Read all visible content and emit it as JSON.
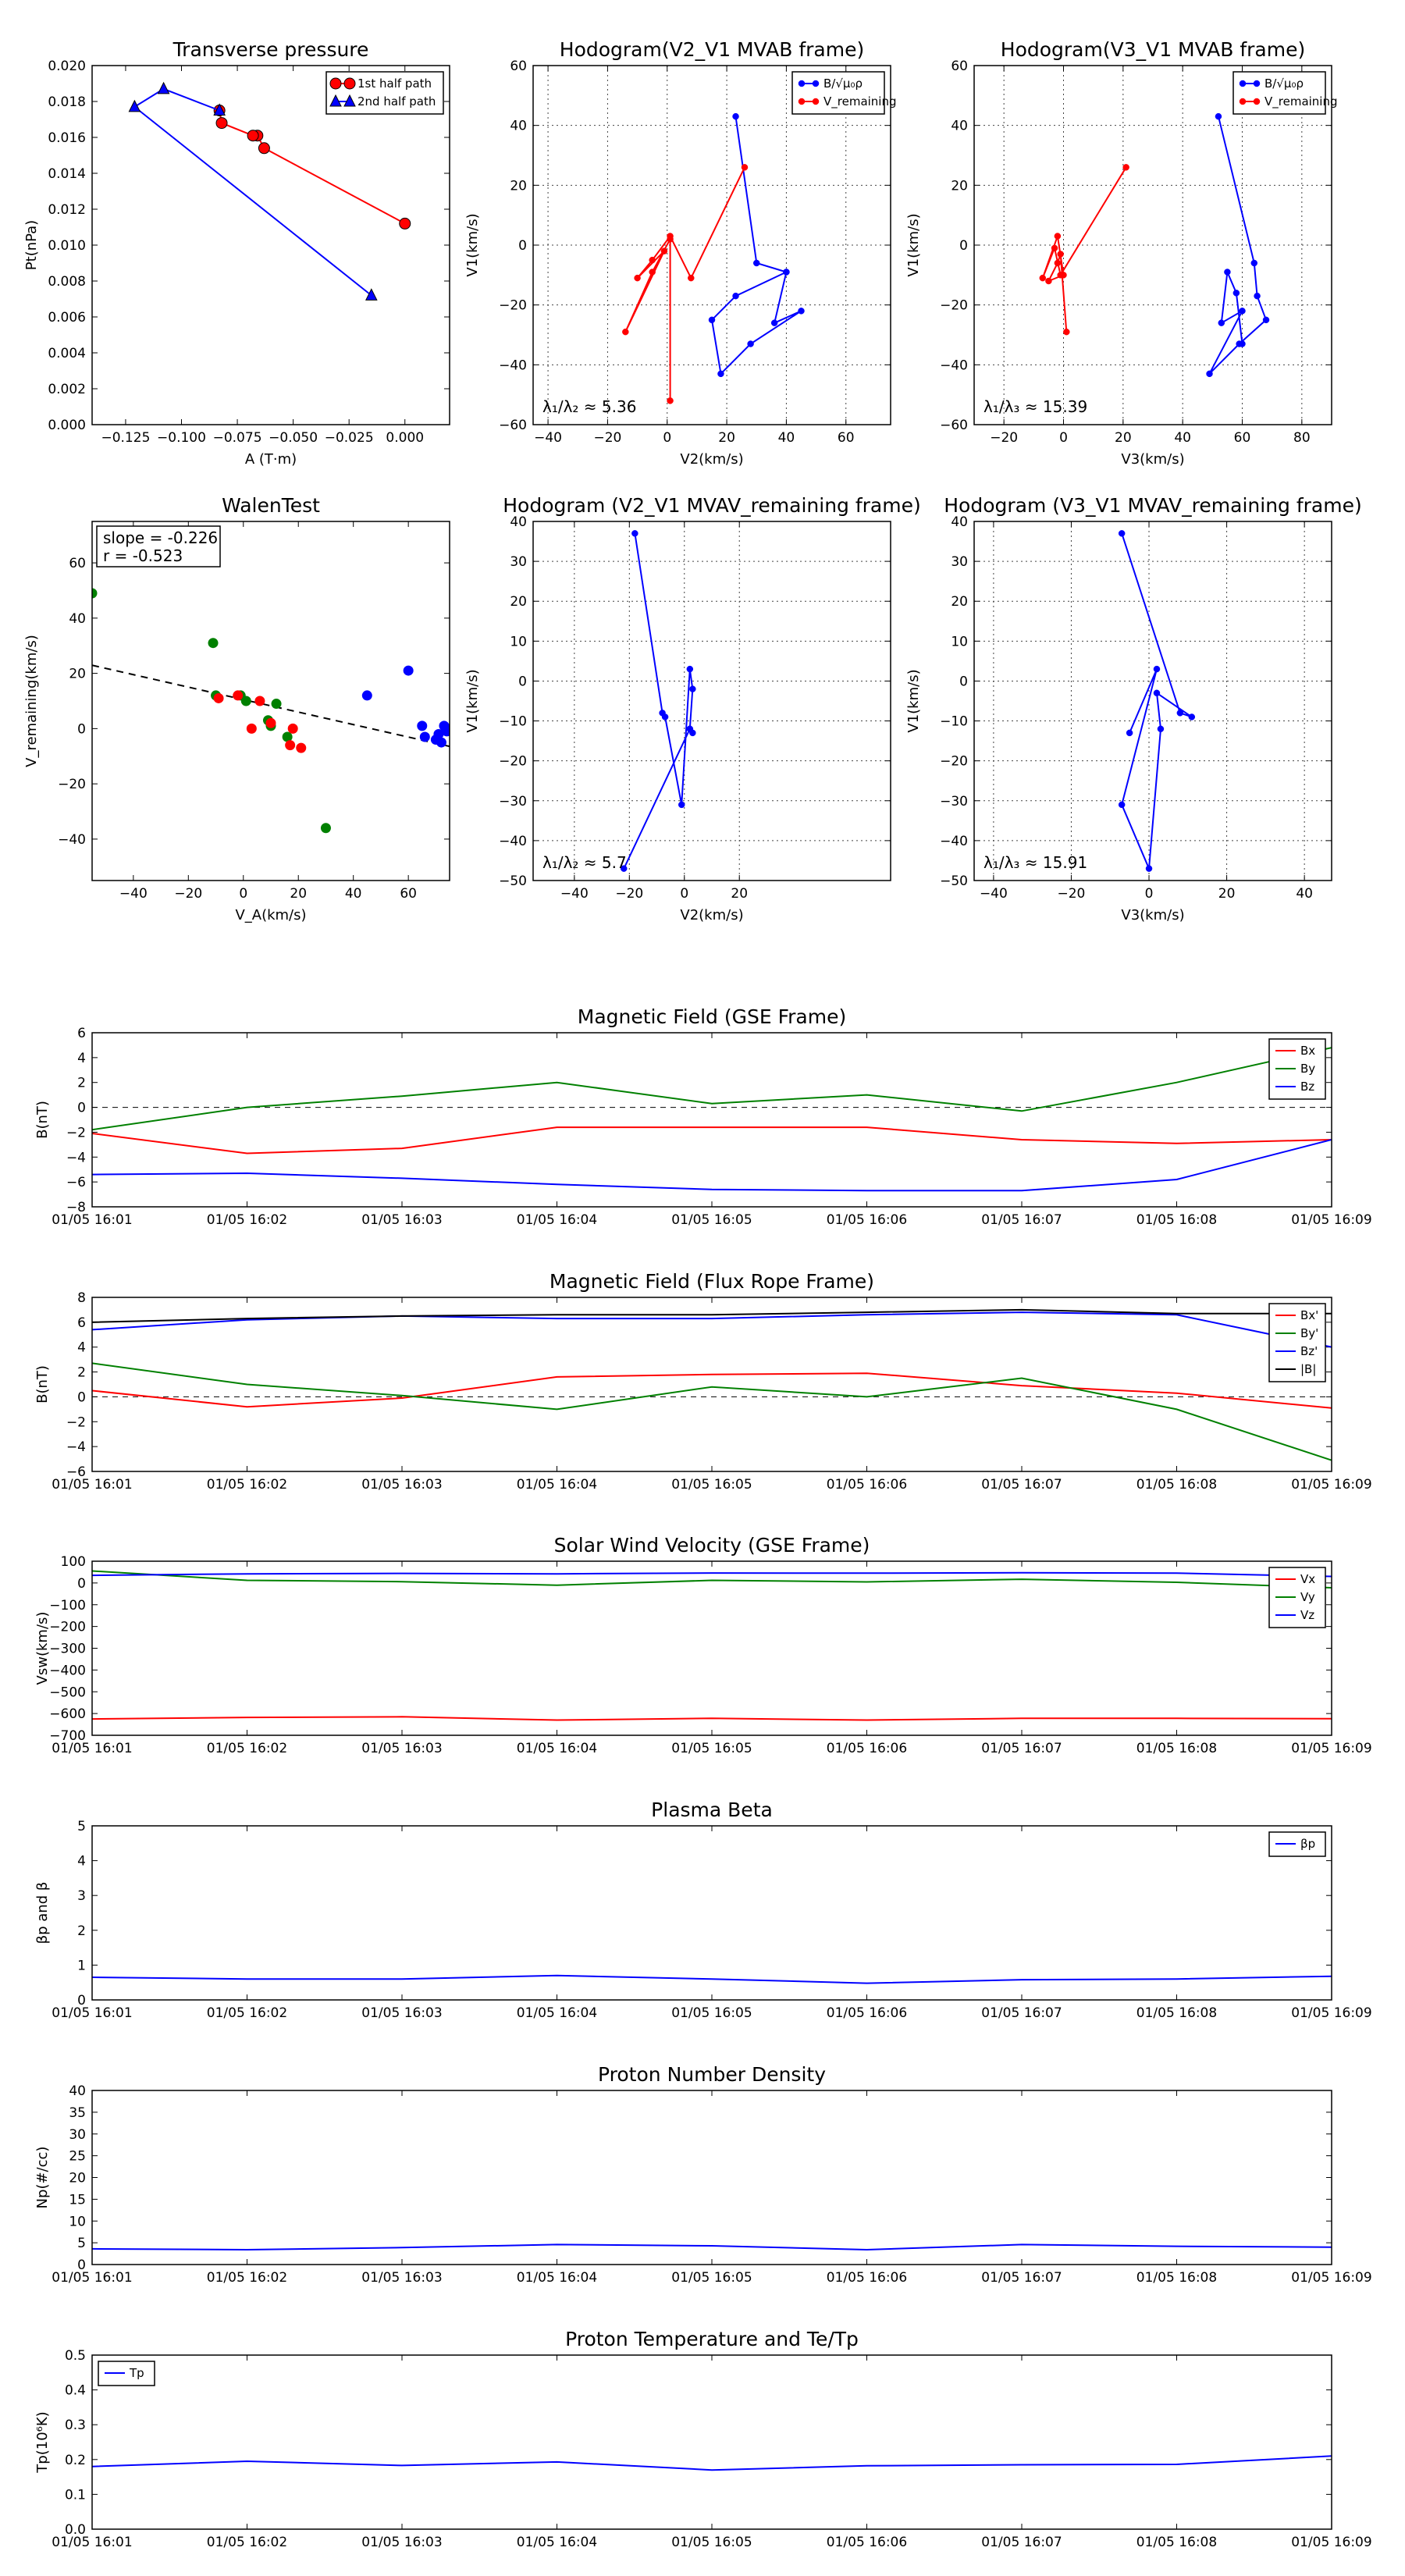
{
  "chart_data": [
    {
      "id": "transverse-pressure",
      "type": "line",
      "title": "Transverse pressure",
      "xlabel": "A (T·m)",
      "ylabel": "Pt(nPa)",
      "xlim": [
        -0.14,
        0.02
      ],
      "ylim": [
        0,
        0.02
      ],
      "xticks": [
        -0.125,
        -0.1,
        -0.075,
        -0.05,
        -0.025,
        0.0
      ],
      "xtick_labels": [
        "−0.125",
        "−0.100",
        "−0.075",
        "−0.050",
        "−0.025",
        "0.000"
      ],
      "yticks": [
        0,
        0.002,
        0.004,
        0.006,
        0.008,
        0.01,
        0.012,
        0.014,
        0.016,
        0.018,
        0.02
      ],
      "ytick_labels": [
        "0.000",
        "0.002",
        "0.004",
        "0.006",
        "0.008",
        "0.010",
        "0.012",
        "0.014",
        "0.016",
        "0.018",
        "0.020"
      ],
      "grid": false,
      "legend": "top-right",
      "series": [
        {
          "name": "1st half path",
          "color": "#ff0000",
          "marker": "circle",
          "x": [
            0.0,
            -0.063,
            -0.066,
            -0.068,
            -0.082,
            -0.083
          ],
          "y": [
            0.0112,
            0.0154,
            0.0161,
            0.0161,
            0.0168,
            0.0175
          ]
        },
        {
          "name": "2nd half path",
          "color": "#0000ff",
          "marker": "triangle",
          "x": [
            -0.083,
            -0.108,
            -0.121,
            -0.015
          ],
          "y": [
            0.0175,
            0.0187,
            0.0177,
            0.0072
          ]
        }
      ]
    },
    {
      "id": "hodogram-v2v1-mvab",
      "type": "line",
      "title": "Hodogram(V2_V1 MVAB frame)",
      "xlabel": "V2(km/s)",
      "ylabel": "V1(km/s)",
      "xlim": [
        -45,
        75
      ],
      "ylim": [
        -60,
        60
      ],
      "xticks": [
        -40,
        -20,
        0,
        20,
        40,
        60
      ],
      "xtick_labels": [
        "−40",
        "−20",
        "0",
        "20",
        "40",
        "60"
      ],
      "yticks": [
        -60,
        -40,
        -20,
        0,
        20,
        40,
        60
      ],
      "ytick_labels": [
        "−60",
        "−40",
        "−20",
        "0",
        "20",
        "40",
        "60"
      ],
      "grid": true,
      "legend": "top-right",
      "annotation": "λ₁/λ₂ ≈ 5.36",
      "series": [
        {
          "name": "B/√μ₀ρ",
          "color": "#0000ff",
          "marker": "dot",
          "x": [
            23,
            30,
            40,
            23,
            15,
            18,
            28,
            45,
            36,
            40
          ],
          "y": [
            43,
            -6,
            -9,
            -17,
            -25,
            -43,
            -33,
            -22,
            -26,
            -9
          ]
        },
        {
          "name": "V_remaining",
          "color": "#ff0000",
          "marker": "dot",
          "x": [
            26,
            8,
            1,
            -5,
            -10,
            -1,
            -14,
            -5,
            1,
            1
          ],
          "y": [
            26,
            -11,
            3,
            -5,
            -11,
            -2,
            -29,
            -9,
            2,
            -52
          ]
        }
      ]
    },
    {
      "id": "hodogram-v3v1-mvab",
      "type": "line",
      "title": "Hodogram(V3_V1 MVAB frame)",
      "xlabel": "V3(km/s)",
      "ylabel": "V1(km/s)",
      "xlim": [
        -30,
        90
      ],
      "ylim": [
        -60,
        60
      ],
      "xticks": [
        -20,
        0,
        20,
        40,
        60,
        80
      ],
      "xtick_labels": [
        "−20",
        "0",
        "20",
        "40",
        "60",
        "80"
      ],
      "yticks": [
        -60,
        -40,
        -20,
        0,
        20,
        40,
        60
      ],
      "ytick_labels": [
        "−60",
        "−40",
        "−20",
        "0",
        "20",
        "40",
        "60"
      ],
      "grid": true,
      "legend": "top-right",
      "annotation": "λ₁/λ₃ ≈ 15.39",
      "series": [
        {
          "name": "B/√μ₀ρ",
          "color": "#0000ff",
          "marker": "dot",
          "x": [
            52,
            64,
            65,
            68,
            59,
            49,
            60,
            53,
            55,
            58,
            60
          ],
          "y": [
            43,
            -6,
            -17,
            -25,
            -33,
            -43,
            -22,
            -26,
            -9,
            -16,
            -33
          ]
        },
        {
          "name": "V_remaining",
          "color": "#ff0000",
          "marker": "dot",
          "x": [
            21,
            -1,
            -3,
            -7,
            -2,
            0,
            -5,
            -2,
            -1,
            1
          ],
          "y": [
            26,
            -10,
            -1,
            -11,
            3,
            -10,
            -12,
            -6,
            -3,
            -29
          ]
        }
      ]
    },
    {
      "id": "walen-test",
      "type": "scatter",
      "title": "WalenTest",
      "xlabel": "V_A(km/s)",
      "ylabel": "V_remaining(km/s)",
      "xlim": [
        -55,
        75
      ],
      "ylim": [
        -55,
        75
      ],
      "xticks": [
        -40,
        -20,
        0,
        20,
        40,
        60
      ],
      "xtick_labels": [
        "−40",
        "−20",
        "0",
        "20",
        "40",
        "60"
      ],
      "yticks": [
        -40,
        -20,
        0,
        20,
        40,
        60
      ],
      "ytick_labels": [
        "−40",
        "−20",
        "0",
        "20",
        "40",
        "60"
      ],
      "grid": false,
      "annotation_lines": [
        "slope = -0.226",
        "r = -0.523"
      ],
      "fit": {
        "slope": -0.226,
        "intercept": 10.5
      },
      "series": [
        {
          "color": "#008000",
          "x": [
            -55,
            -11,
            -10,
            -1,
            1,
            9,
            10,
            12,
            16,
            30
          ],
          "y": [
            49,
            31,
            12,
            12,
            10,
            3,
            1,
            9,
            -3,
            -36
          ]
        },
        {
          "color": "#ff0000",
          "x": [
            -9,
            -2,
            3,
            6,
            10,
            18,
            17,
            21
          ],
          "y": [
            11,
            12,
            0,
            10,
            2,
            0,
            -6,
            -7
          ]
        },
        {
          "color": "#0000ff",
          "x": [
            45,
            60,
            65,
            66,
            70,
            71,
            72,
            73,
            74,
            74
          ],
          "y": [
            12,
            21,
            1,
            -3,
            -4,
            -2,
            -5,
            1,
            -1,
            0
          ]
        }
      ]
    },
    {
      "id": "hodogram-v2v1-mvav",
      "type": "line",
      "title": "Hodogram (V2_V1 MVAV_remaining frame)",
      "xlabel": "V2(km/s)",
      "ylabel": "V1(km/s)",
      "xlim": [
        -55,
        75
      ],
      "ylim": [
        -50,
        40
      ],
      "xticks": [
        -40,
        -20,
        0,
        20
      ],
      "xtick_labels": [
        "−40",
        "−20",
        "0",
        "20"
      ],
      "yticks": [
        -50,
        -40,
        -30,
        -20,
        -10,
        0,
        10,
        20,
        30,
        40
      ],
      "ytick_labels": [
        "−50",
        "−40",
        "−30",
        "−20",
        "−10",
        "0",
        "10",
        "20",
        "30",
        "40"
      ],
      "grid": true,
      "annotation": "λ₁/λ₂ ≈ 5.7",
      "series": [
        {
          "color": "#0000ff",
          "marker": "dot",
          "x": [
            -18,
            -8,
            -7,
            -1,
            2,
            3,
            2,
            3,
            2,
            -22
          ],
          "y": [
            37,
            -8,
            -9,
            -31,
            3,
            -2,
            -12,
            -13,
            -12,
            -47
          ]
        }
      ]
    },
    {
      "id": "hodogram-v3v1-mvav",
      "type": "line",
      "title": "Hodogram (V3_V1 MVAV_remaining frame)",
      "xlabel": "V3(km/s)",
      "ylabel": "V1(km/s)",
      "xlim": [
        -45,
        47
      ],
      "ylim": [
        -50,
        40
      ],
      "xticks": [
        -40,
        -20,
        0,
        20,
        40
      ],
      "xtick_labels": [
        "−40",
        "−20",
        "0",
        "20",
        "40"
      ],
      "yticks": [
        -50,
        -40,
        -30,
        -20,
        -10,
        0,
        10,
        20,
        30,
        40
      ],
      "ytick_labels": [
        "−50",
        "−40",
        "−30",
        "−20",
        "−10",
        "0",
        "10",
        "20",
        "30",
        "40"
      ],
      "grid": true,
      "annotation": "λ₁/λ₃ ≈ 15.91",
      "series": [
        {
          "color": "#0000ff",
          "marker": "dot",
          "x": [
            -7,
            8,
            11,
            2,
            3,
            0,
            -7,
            2,
            -5
          ],
          "y": [
            37,
            -8,
            -9,
            -3,
            -12,
            -47,
            -31,
            3,
            -13
          ]
        }
      ]
    },
    {
      "id": "magnetic-field-gse",
      "type": "line",
      "title": "Magnetic Field (GSE Frame)",
      "ylabel": "B(nT)",
      "ylim": [
        -8,
        6
      ],
      "yticks": [
        -8,
        -6,
        -4,
        -2,
        0,
        2,
        4,
        6
      ],
      "ytick_labels": [
        "−8",
        "−6",
        "−4",
        "−2",
        "0",
        "2",
        "4",
        "6"
      ],
      "categories": [
        "01/05 16:01",
        "01/05 16:02",
        "01/05 16:03",
        "01/05 16:04",
        "01/05 16:05",
        "01/05 16:06",
        "01/05 16:07",
        "01/05 16:08",
        "01/05 16:09"
      ],
      "zero_line": true,
      "legend": "top-right",
      "series": [
        {
          "name": "Bx",
          "color": "#ff0000",
          "values": [
            -2.1,
            -3.7,
            -3.3,
            -1.6,
            -1.6,
            -1.6,
            -2.6,
            -2.9,
            -2.6
          ]
        },
        {
          "name": "By",
          "color": "#008000",
          "values": [
            -1.8,
            0.0,
            0.9,
            2.0,
            0.3,
            1.0,
            -0.3,
            2.0,
            4.8
          ]
        },
        {
          "name": "Bz",
          "color": "#0000ff",
          "values": [
            -5.4,
            -5.3,
            -5.7,
            -6.2,
            -6.6,
            -6.7,
            -6.7,
            -5.8,
            -2.6
          ]
        }
      ]
    },
    {
      "id": "magnetic-field-flux-rope",
      "type": "line",
      "title": "Magnetic Field (Flux Rope Frame)",
      "ylabel": "B(nT)",
      "ylim": [
        -6,
        8
      ],
      "yticks": [
        -6,
        -4,
        -2,
        0,
        2,
        4,
        6,
        8
      ],
      "ytick_labels": [
        "−6",
        "−4",
        "−2",
        "0",
        "2",
        "4",
        "6",
        "8"
      ],
      "categories": [
        "01/05 16:01",
        "01/05 16:02",
        "01/05 16:03",
        "01/05 16:04",
        "01/05 16:05",
        "01/05 16:06",
        "01/05 16:07",
        "01/05 16:08",
        "01/05 16:09"
      ],
      "zero_line": true,
      "legend": "top-right",
      "series": [
        {
          "name": "Bx'",
          "color": "#ff0000",
          "values": [
            0.5,
            -0.8,
            -0.1,
            1.6,
            1.8,
            1.9,
            0.9,
            0.3,
            -0.9
          ]
        },
        {
          "name": "By'",
          "color": "#008000",
          "values": [
            2.7,
            1.0,
            0.1,
            -1.0,
            0.8,
            0.0,
            1.5,
            -1.0,
            -5.1
          ]
        },
        {
          "name": "Bz'",
          "color": "#0000ff",
          "values": [
            5.4,
            6.2,
            6.5,
            6.3,
            6.3,
            6.6,
            6.8,
            6.6,
            4.0
          ]
        },
        {
          "name": "|B|",
          "color": "#000000",
          "values": [
            6.0,
            6.3,
            6.5,
            6.6,
            6.6,
            6.8,
            7.0,
            6.7,
            6.7
          ]
        }
      ]
    },
    {
      "id": "solar-wind-velocity",
      "type": "line",
      "title": "Solar Wind Velocity (GSE Frame)",
      "ylabel": "Vsw(km/s)",
      "ylim": [
        -700,
        100
      ],
      "yticks": [
        -700,
        -600,
        -500,
        -400,
        -300,
        -200,
        -100,
        0,
        100
      ],
      "ytick_labels": [
        "−700",
        "−600",
        "−500",
        "−400",
        "−300",
        "−200",
        "−100",
        "0",
        "100"
      ],
      "categories": [
        "01/05 16:01",
        "01/05 16:02",
        "01/05 16:03",
        "01/05 16:04",
        "01/05 16:05",
        "01/05 16:06",
        "01/05 16:07",
        "01/05 16:08",
        "01/05 16:09"
      ],
      "legend": "top-right",
      "series": [
        {
          "name": "Vx",
          "color": "#ff0000",
          "values": [
            -625,
            -618,
            -615,
            -630,
            -622,
            -630,
            -622,
            -622,
            -624
          ]
        },
        {
          "name": "Vy",
          "color": "#008000",
          "values": [
            55,
            12,
            6,
            -10,
            12,
            5,
            17,
            3,
            -22
          ]
        },
        {
          "name": "Vz",
          "color": "#0000ff",
          "values": [
            35,
            42,
            44,
            42,
            46,
            45,
            47,
            45,
            30
          ]
        }
      ]
    },
    {
      "id": "plasma-beta",
      "type": "line",
      "title": "Plasma Beta",
      "ylabel": "βp and β",
      "ylim": [
        0,
        5
      ],
      "yticks": [
        0,
        1,
        2,
        3,
        4,
        5
      ],
      "ytick_labels": [
        "0",
        "1",
        "2",
        "3",
        "4",
        "5"
      ],
      "categories": [
        "01/05 16:01",
        "01/05 16:02",
        "01/05 16:03",
        "01/05 16:04",
        "01/05 16:05",
        "01/05 16:06",
        "01/05 16:07",
        "01/05 16:08",
        "01/05 16:09"
      ],
      "legend": "top-right",
      "series": [
        {
          "name": "βp",
          "color": "#0000ff",
          "values": [
            0.65,
            0.6,
            0.6,
            0.7,
            0.6,
            0.48,
            0.58,
            0.6,
            0.68
          ]
        }
      ]
    },
    {
      "id": "proton-number-density",
      "type": "line",
      "title": "Proton Number Density",
      "ylabel": "Np(#/cc)",
      "ylim": [
        0,
        40
      ],
      "yticks": [
        0,
        5,
        10,
        15,
        20,
        25,
        30,
        35,
        40
      ],
      "ytick_labels": [
        "0",
        "5",
        "10",
        "15",
        "20",
        "25",
        "30",
        "35",
        "40"
      ],
      "categories": [
        "01/05 16:01",
        "01/05 16:02",
        "01/05 16:03",
        "01/05 16:04",
        "01/05 16:05",
        "01/05 16:06",
        "01/05 16:07",
        "01/05 16:08",
        "01/05 16:09"
      ],
      "series": [
        {
          "color": "#0000ff",
          "values": [
            3.6,
            3.4,
            3.9,
            4.6,
            4.3,
            3.4,
            4.6,
            4.2,
            4.0
          ]
        }
      ]
    },
    {
      "id": "proton-temperature",
      "type": "line",
      "title": "Proton Temperature and Te/Tp",
      "ylabel": "Tp(10⁶K)",
      "ylim": [
        0,
        0.5
      ],
      "yticks": [
        0,
        0.1,
        0.2,
        0.3,
        0.4,
        0.5
      ],
      "ytick_labels": [
        "0.0",
        "0.1",
        "0.2",
        "0.3",
        "0.4",
        "0.5"
      ],
      "categories": [
        "01/05 16:01",
        "01/05 16:02",
        "01/05 16:03",
        "01/05 16:04",
        "01/05 16:05",
        "01/05 16:06",
        "01/05 16:07",
        "01/05 16:08",
        "01/05 16:09"
      ],
      "legend": "top-left",
      "series": [
        {
          "name": "Tp",
          "color": "#0000ff",
          "values": [
            0.18,
            0.195,
            0.183,
            0.193,
            0.17,
            0.182,
            0.185,
            0.186,
            0.21
          ]
        }
      ]
    }
  ]
}
